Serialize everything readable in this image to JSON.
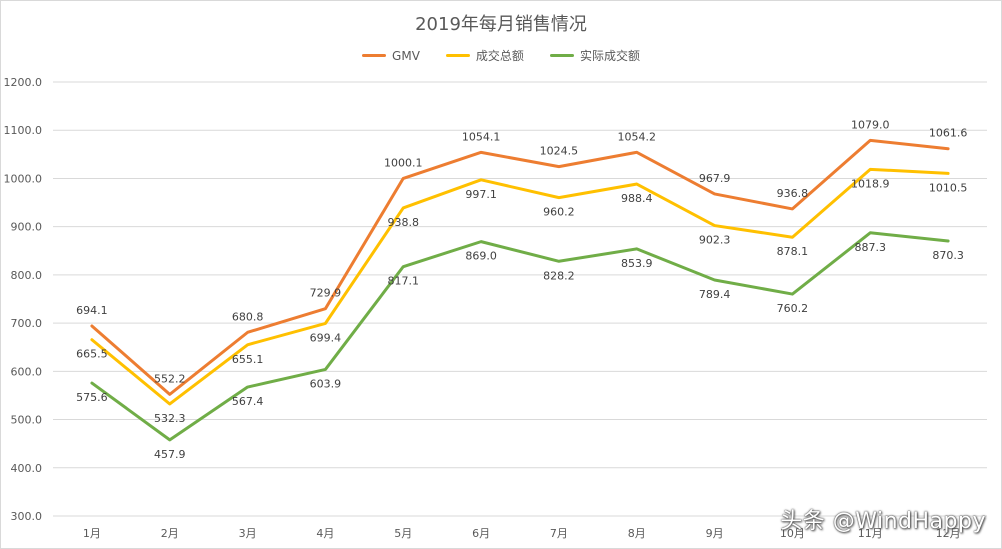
{
  "watermark": "头条 @WindHappy",
  "chart_data": {
    "type": "line",
    "title": "2019年每月销售情况",
    "categories": [
      "1月",
      "2月",
      "3月",
      "4月",
      "5月",
      "6月",
      "7月",
      "8月",
      "9月",
      "10月",
      "11月",
      "12月"
    ],
    "ylim": [
      300,
      1200
    ],
    "yticks": [
      "300.0",
      "400.0",
      "500.0",
      "600.0",
      "700.0",
      "800.0",
      "900.0",
      "1000.0",
      "1100.0",
      "1200.0"
    ],
    "grid": true,
    "legend_position": "top",
    "series": [
      {
        "name": "GMV",
        "color": "#ed7d31",
        "values": [
          694.1,
          552.2,
          680.8,
          729.9,
          1000.1,
          1054.1,
          1024.5,
          1054.2,
          967.9,
          936.8,
          1079.0,
          1061.6
        ],
        "labels": [
          "694.1",
          "552.2",
          "680.8",
          "729.9",
          "1000.1",
          "1054.1",
          "1024.5",
          "1054.2",
          "967.9",
          "936.8",
          "1079.0",
          "1061.6"
        ]
      },
      {
        "name": "成交总额",
        "color": "#ffc000",
        "values": [
          665.5,
          532.3,
          655.1,
          699.4,
          938.8,
          997.1,
          960.2,
          988.4,
          902.3,
          878.1,
          1018.9,
          1010.5
        ],
        "labels": [
          "665.5",
          "532.3",
          "655.1",
          "699.4",
          "938.8",
          "997.1",
          "960.2",
          "988.4",
          "902.3",
          "878.1",
          "1018.9",
          "1010.5"
        ]
      },
      {
        "name": "实际成交额",
        "color": "#70ad47",
        "values": [
          575.6,
          457.9,
          567.4,
          603.9,
          817.1,
          869.0,
          828.2,
          853.9,
          789.4,
          760.2,
          887.3,
          870.3
        ],
        "labels": [
          "575.6",
          "457.9",
          "567.4",
          "603.9",
          "817.1",
          "869.0",
          "828.2",
          "853.9",
          "789.4",
          "760.2",
          "887.3",
          "870.3"
        ]
      }
    ]
  }
}
